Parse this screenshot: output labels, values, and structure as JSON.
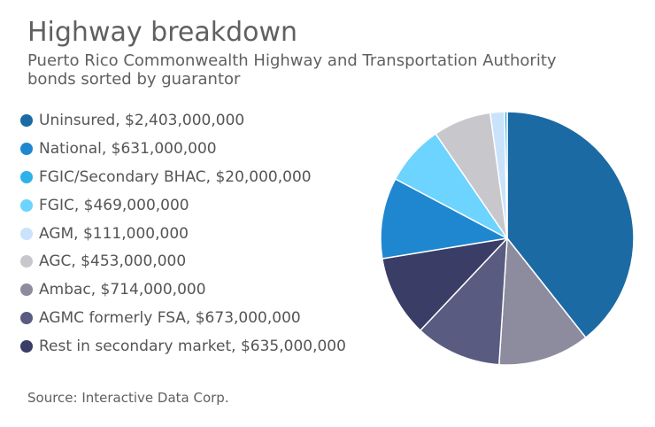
{
  "chart_data": {
    "type": "pie",
    "title": "Highway breakdown",
    "subtitle": "Puerto Rico Commonwealth Highway and Transportation Authority bonds sorted by guarantor",
    "source": "Source: Interactive Data Corp.",
    "start_angle_deg": 0,
    "direction": "clockwise",
    "slices": [
      {
        "name": "Uninsured",
        "value": 2403000000,
        "label": "Uninsured, $2,403,000,000",
        "color": "#1b6aa4"
      },
      {
        "name": "Ambac",
        "value": 714000000,
        "label": "Ambac, $714,000,000",
        "color": "#8c8c9e"
      },
      {
        "name": "AGMC formerly FSA",
        "value": 673000000,
        "label": "AGMC formerly FSA, $673,000,000",
        "color": "#595c80"
      },
      {
        "name": "Rest in secondary market",
        "value": 635000000,
        "label": "Rest in secondary market, $635,000,000",
        "color": "#3a3d66"
      },
      {
        "name": "National",
        "value": 631000000,
        "label": "National, $631,000,000",
        "color": "#1f87d0"
      },
      {
        "name": "FGIC",
        "value": 469000000,
        "label": "FGIC, $469,000,000",
        "color": "#6dd3ff"
      },
      {
        "name": "AGC",
        "value": 453000000,
        "label": "AGC, $453,000,000",
        "color": "#c8c8cc"
      },
      {
        "name": "AGM",
        "value": 111000000,
        "label": "AGM, $111,000,000",
        "color": "#c9e3fb"
      },
      {
        "name": "FGIC/Secondary BHAC",
        "value": 20000000,
        "label": "FGIC/Secondary BHAC, $20,000,000",
        "color": "#2fb1ea"
      }
    ],
    "legend_order": [
      "Uninsured",
      "National",
      "FGIC/Secondary BHAC",
      "FGIC",
      "AGM",
      "AGC",
      "Ambac",
      "AGMC formerly FSA",
      "Rest in secondary market"
    ],
    "legend_placement": "left"
  }
}
